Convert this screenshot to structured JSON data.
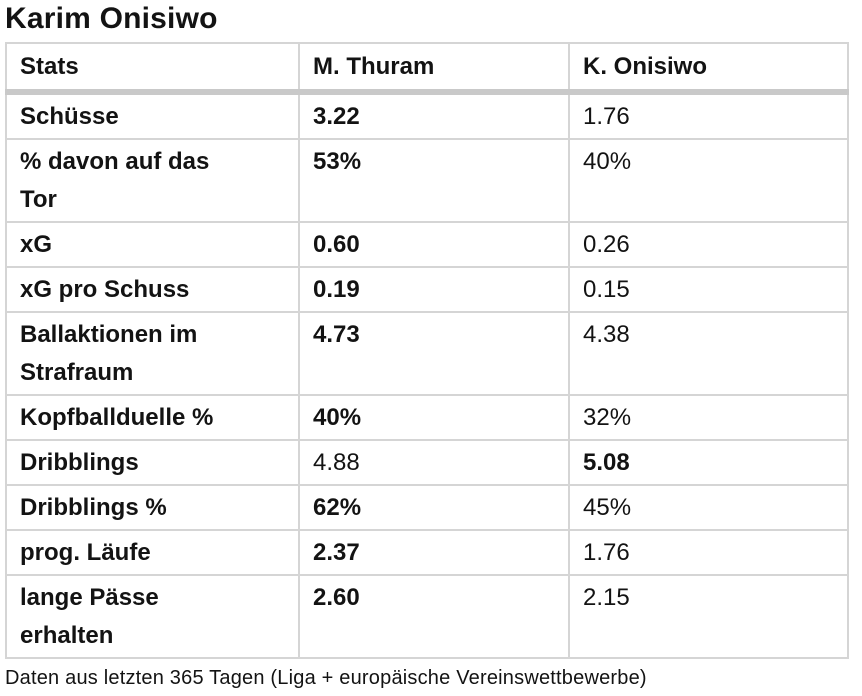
{
  "page": {
    "title": "Karim Onisiwo",
    "footnote": "Daten aus letzten 365 Tagen (Liga + europäische Vereinswettbewerbe)"
  },
  "chart_data": {
    "type": "table",
    "title": "Karim Onisiwo",
    "columns": [
      "Stats",
      "M. Thuram",
      "K. Onisiwo"
    ],
    "rows": [
      {
        "stat": "Schüsse",
        "thuram": "3.22",
        "onisiwo": "1.76",
        "winner": "thuram"
      },
      {
        "stat": "% davon auf das\nTor",
        "thuram": "53%",
        "onisiwo": "40%",
        "winner": "thuram"
      },
      {
        "stat": "xG",
        "thuram": "0.60",
        "onisiwo": "0.26",
        "winner": "thuram"
      },
      {
        "stat": "xG pro Schuss",
        "thuram": "0.19",
        "onisiwo": "0.15",
        "winner": "thuram"
      },
      {
        "stat": "Ballaktionen im\nStrafraum",
        "thuram": "4.73",
        "onisiwo": "4.38",
        "winner": "thuram"
      },
      {
        "stat": "Kopfballduelle %",
        "thuram": "40%",
        "onisiwo": "32%",
        "winner": "thuram"
      },
      {
        "stat": "Dribblings",
        "thuram": "4.88",
        "onisiwo": "5.08",
        "winner": "onisiwo"
      },
      {
        "stat": "Dribblings %",
        "thuram": "62%",
        "onisiwo": "45%",
        "winner": "thuram"
      },
      {
        "stat": "prog. Läufe",
        "thuram": "2.37",
        "onisiwo": "1.76",
        "winner": "thuram"
      },
      {
        "stat": "lange Pässe\nerhalten",
        "thuram": "2.60",
        "onisiwo": "2.15",
        "winner": "thuram"
      }
    ],
    "footnote": "Daten aus letzten 365 Tagen (Liga + europäische Vereinswettbewerbe)",
    "layout": {
      "legend_position": "none",
      "grid": "table-borders"
    }
  },
  "colors": {
    "text": "#131313",
    "border": "#d5d5d5",
    "header_divider": "#c9c9c9",
    "background": "#ffffff"
  }
}
